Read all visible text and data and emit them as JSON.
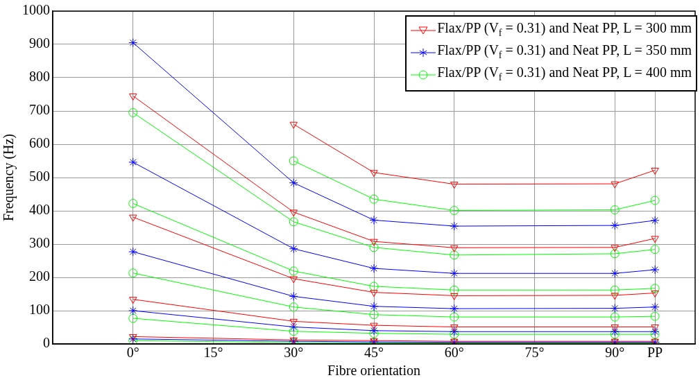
{
  "chart_data": {
    "type": "line",
    "xlabel": "Fibre orientation",
    "ylabel": "Frequency (Hz)",
    "x": [
      0,
      30,
      45,
      60,
      90,
      97.5
    ],
    "xlim": [
      -15,
      105
    ],
    "xticks": [
      {
        "value": 0,
        "label": "0°"
      },
      {
        "value": 15,
        "label": "15°"
      },
      {
        "value": 30,
        "label": "30°"
      },
      {
        "value": 45,
        "label": "45°"
      },
      {
        "value": 60,
        "label": "60°"
      },
      {
        "value": 75,
        "label": "75°"
      },
      {
        "value": 90,
        "label": "90°"
      },
      {
        "value": 97.5,
        "label": "PP"
      }
    ],
    "ylim": [
      0,
      1000
    ],
    "yticks": [
      0,
      100,
      200,
      300,
      400,
      500,
      600,
      700,
      800,
      900,
      1000
    ],
    "grid": true,
    "legend": "top right",
    "line_style": "solid",
    "series": [
      {
        "name": "Flax/PP (V$_{f}$ = 0.31) and Neat PP, L = 300 mm",
        "color": "#ff0000",
        "marker": "triangle",
        "values": [
          null,
          660,
          515,
          480,
          481,
          522
        ]
      },
      {
        "name": "Flax/PP (V$_{f}$ = 0.31) and Neat PP, L = 350 mm",
        "color": "#0000ff",
        "marker": "cross",
        "values": [
          905,
          484,
          372,
          354,
          356,
          371
        ]
      },
      {
        "name": "Flax/PP (V$_{f}$ = 0.31) and Neat PP, L = 400 mm",
        "color": "#00ff00",
        "marker": "circle",
        "values": [
          null,
          550,
          435,
          401,
          403,
          431
        ]
      },
      {
        "color": "#ff0000",
        "marker": "triangle",
        "values": [
          745,
          396,
          308,
          289,
          290,
          317
        ]
      },
      {
        "color": "#ff0000",
        "marker": "triangle",
        "values": [
          381,
          196,
          155,
          145,
          146,
          153
        ]
      },
      {
        "color": "#ff0000",
        "marker": "triangle",
        "values": [
          134,
          68,
          56,
          51,
          51,
          51
        ]
      },
      {
        "color": "#ff0000",
        "marker": "triangle",
        "values": [
          22,
          12,
          10,
          8,
          8,
          8
        ]
      },
      {
        "color": "#0000ff",
        "marker": "cross",
        "values": [
          546,
          286,
          227,
          212,
          212,
          223
        ]
      },
      {
        "color": "#0000ff",
        "marker": "cross",
        "values": [
          277,
          143,
          113,
          106,
          107,
          111
        ]
      },
      {
        "color": "#0000ff",
        "marker": "cross",
        "values": [
          100,
          51,
          40,
          37,
          37,
          37
        ]
      },
      {
        "color": "#0000ff",
        "marker": "cross",
        "values": [
          15,
          8,
          6,
          5,
          5,
          5
        ]
      },
      {
        "color": "#00ff00",
        "marker": "circle",
        "values": [
          695,
          367,
          290,
          267,
          271,
          284
        ]
      },
      {
        "color": "#00ff00",
        "marker": "circle",
        "values": [
          422,
          219,
          173,
          162,
          162,
          167
        ]
      },
      {
        "color": "#00ff00",
        "marker": "circle",
        "values": [
          213,
          111,
          88,
          81,
          81,
          83
        ]
      },
      {
        "color": "#00ff00",
        "marker": "circle",
        "values": [
          77,
          38,
          32,
          29,
          29,
          29
        ]
      },
      {
        "color": "#00ff00",
        "marker": "circle",
        "values": [
          10,
          4,
          3,
          3,
          3,
          3
        ]
      }
    ]
  }
}
